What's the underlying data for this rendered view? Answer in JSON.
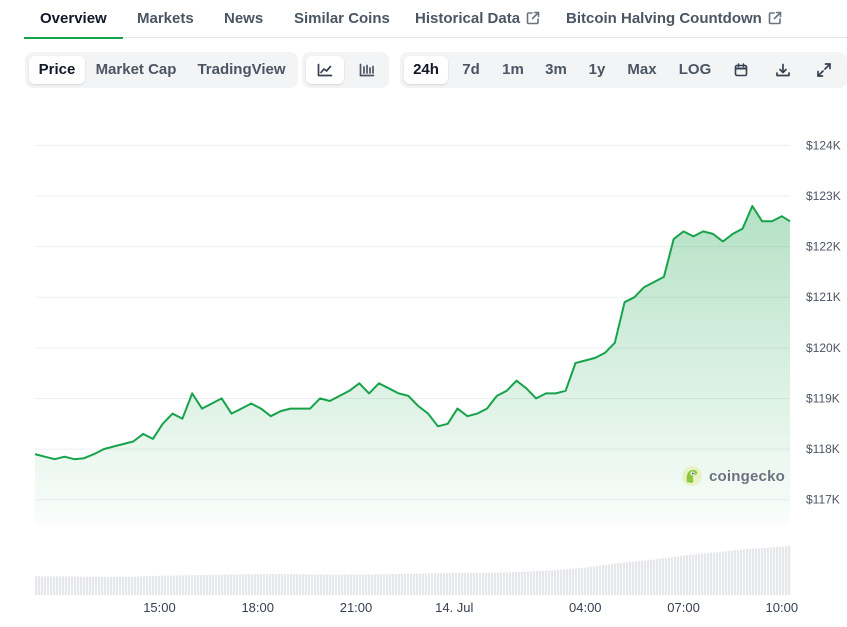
{
  "tabs": [
    {
      "label": "Overview",
      "active": true,
      "external": false
    },
    {
      "label": "Markets",
      "active": false,
      "external": false
    },
    {
      "label": "News",
      "active": false,
      "external": false
    },
    {
      "label": "Similar Coins",
      "active": false,
      "external": false
    },
    {
      "label": "Historical Data",
      "active": false,
      "external": true
    },
    {
      "label": "Bitcoin Halving Countdown",
      "active": false,
      "external": true
    }
  ],
  "controls": {
    "metric": {
      "options": [
        "Price",
        "Market Cap",
        "TradingView"
      ],
      "selected": "Price"
    },
    "chart_style": {
      "options": [
        "line-chart-icon",
        "candlestick-icon"
      ],
      "selected": "line-chart-icon"
    },
    "range": {
      "options": [
        "24h",
        "7d",
        "1m",
        "3m",
        "1y",
        "Max",
        "LOG"
      ],
      "selected": "24h"
    },
    "tools": [
      "calendar-icon",
      "download-icon",
      "fullscreen-icon"
    ]
  },
  "brand": {
    "name": "coingecko"
  },
  "colors": {
    "line": "#16a34a",
    "accent": "#16a34a",
    "volume": "#e5e7eb"
  },
  "chart_data": {
    "type": "area",
    "ylim": [
      116500,
      124500
    ],
    "y_ticks": [
      117000,
      118000,
      119000,
      120000,
      121000,
      122000,
      123000,
      124000
    ],
    "y_tick_labels": [
      "$117K",
      "$118K",
      "$119K",
      "$120K",
      "$121K",
      "$122K",
      "$123K",
      "$124K"
    ],
    "x_ticks": [
      15,
      18,
      21,
      24,
      28,
      31,
      34
    ],
    "x_tick_labels": [
      "15:00",
      "18:00",
      "21:00",
      "14. Jul",
      "04:00",
      "07:00",
      "10:00"
    ],
    "xlim": [
      11.2,
      34.25
    ],
    "grid": true,
    "legend": "none",
    "series": [
      {
        "x": [
          11.2,
          11.5,
          11.8,
          12.1,
          12.4,
          12.7,
          13.0,
          13.3,
          13.6,
          13.9,
          14.2,
          14.5,
          14.8,
          15.1,
          15.4,
          15.7,
          16.0,
          16.3,
          16.6,
          16.9,
          17.2,
          17.5,
          17.8,
          18.1,
          18.4,
          18.7,
          19.0,
          19.3,
          19.6,
          19.9,
          20.2,
          20.5,
          20.8,
          21.1,
          21.4,
          21.7,
          22.0,
          22.3,
          22.6,
          22.9,
          23.2,
          23.5,
          23.8,
          24.1,
          24.4,
          24.7,
          25.0,
          25.3,
          25.6,
          25.9,
          26.2,
          26.5,
          26.8,
          27.1,
          27.4,
          27.7,
          28.0,
          28.3,
          28.6,
          28.9,
          29.2,
          29.5,
          29.8,
          30.1,
          30.4,
          30.7,
          31.0,
          31.3,
          31.6,
          31.9,
          32.2,
          32.5,
          32.8,
          33.1,
          33.4,
          33.7,
          34.0,
          34.25
        ],
        "y": [
          117900,
          117850,
          117800,
          117850,
          117800,
          117820,
          117900,
          118000,
          118050,
          118100,
          118150,
          118300,
          118200,
          118500,
          118700,
          118600,
          119100,
          118800,
          118900,
          119000,
          118700,
          118800,
          118900,
          118800,
          118650,
          118750,
          118800,
          118800,
          118800,
          119000,
          118950,
          119050,
          119150,
          119300,
          119100,
          119300,
          119200,
          119100,
          119050,
          118850,
          118700,
          118450,
          118500,
          118800,
          118650,
          118700,
          118800,
          119050,
          119150,
          119350,
          119200,
          119000,
          119100,
          119100,
          119150,
          119700,
          119750,
          119800,
          119900,
          120100,
          120900,
          121000,
          121200,
          121300,
          121400,
          122150,
          122300,
          122200,
          122300,
          122250,
          122100,
          122250,
          122350,
          122800,
          122500,
          122500,
          122600,
          122500
        ]
      }
    ],
    "volume": {
      "x": [
        11.2,
        12.0,
        13.0,
        14.0,
        15.0,
        16.0,
        17.0,
        18.0,
        19.0,
        20.0,
        21.0,
        22.0,
        23.0,
        24.0,
        25.0,
        26.0,
        27.0,
        28.0,
        29.0,
        30.0,
        31.0,
        32.0,
        33.0,
        34.0,
        34.25
      ],
      "values": [
        0.34,
        0.34,
        0.33,
        0.33,
        0.35,
        0.36,
        0.37,
        0.38,
        0.38,
        0.37,
        0.37,
        0.38,
        0.39,
        0.4,
        0.4,
        0.42,
        0.45,
        0.5,
        0.58,
        0.64,
        0.72,
        0.78,
        0.84,
        0.88,
        0.9
      ]
    }
  }
}
